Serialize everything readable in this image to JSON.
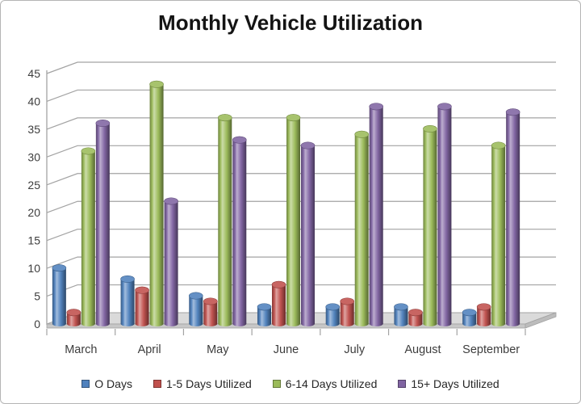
{
  "chart_data": {
    "type": "bar",
    "subtype": "3d-cylinder",
    "title": "Monthly Vehicle Utilization",
    "categories": [
      "March",
      "April",
      "May",
      "June",
      "July",
      "August",
      "September"
    ],
    "series": [
      {
        "name": "O Days",
        "color": "#4F81BD",
        "values": [
          10,
          8,
          5,
          3,
          3,
          3,
          2
        ]
      },
      {
        "name": "1-5 Days Utilized",
        "color": "#C0504D",
        "values": [
          2,
          6,
          4,
          7,
          4,
          2,
          3
        ]
      },
      {
        "name": "6-14 Days Utilized",
        "color": "#9BBB59",
        "values": [
          31,
          43,
          37,
          37,
          34,
          35,
          32
        ]
      },
      {
        "name": "15+ Days Utilized",
        "color": "#8064A2",
        "values": [
          36,
          22,
          33,
          32,
          39,
          39,
          38
        ]
      }
    ],
    "xlabel": "",
    "ylabel": "",
    "ylim": [
      0,
      45
    ],
    "ytick_step": 5,
    "yticks": [
      0,
      5,
      10,
      15,
      20,
      25,
      30,
      35,
      40,
      45
    ],
    "grid": true,
    "legend_position": "bottom",
    "colors": {
      "gridline": "#a3a3a3",
      "axis_text": "#3d3d3d",
      "floor_top": "#dadada",
      "floor_front": "#c7c7c7",
      "floor_side": "#bcbcbc"
    }
  }
}
